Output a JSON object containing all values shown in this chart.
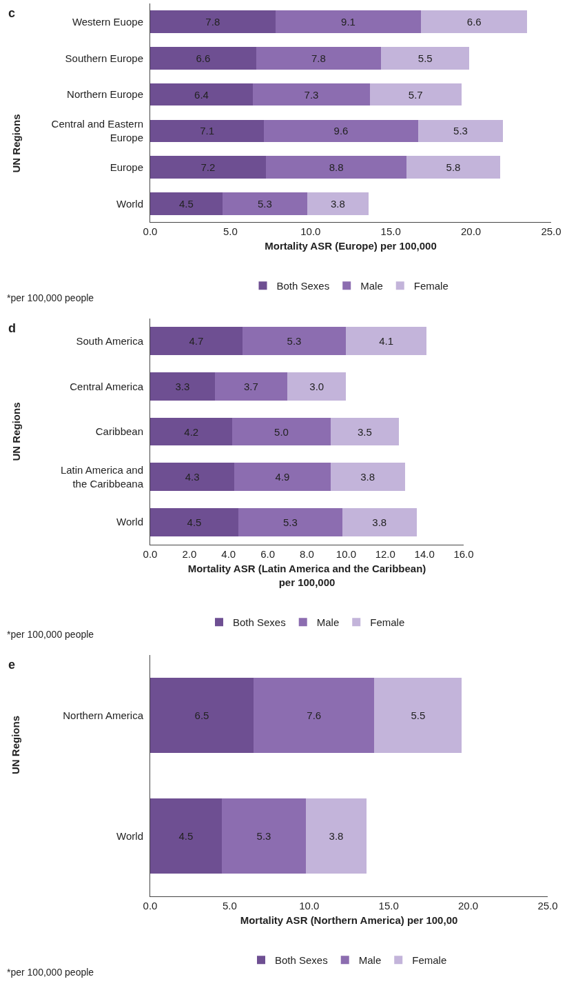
{
  "chart_data": [
    {
      "type": "bar",
      "orientation": "horizontal",
      "stacked": true,
      "legend": "bottom",
      "ylabel": "UN Regions",
      "xlabel": "Mortality ASR (Europe) per 100,000",
      "categories": [
        "Western Euope",
        "Southern Europe",
        "Northern Europe",
        "Central and Eastern Europe",
        "Europe",
        "World"
      ],
      "series": [
        {
          "name": "Both Sexes",
          "color": "#6e4f92",
          "values": [
            7.8,
            6.6,
            6.4,
            7.1,
            7.2,
            4.5
          ],
          "value_labels": [
            "7.8",
            "6.6",
            "6.4",
            "7.1",
            "7.2",
            "4.5"
          ]
        },
        {
          "name": "Male",
          "color": "#8c6db0",
          "values": [
            9.1,
            7.8,
            7.3,
            9.6,
            8.8,
            5.3
          ],
          "value_labels": [
            "9.1",
            "7.8",
            "7.3",
            "9.6",
            "8.8",
            "5.3"
          ]
        },
        {
          "name": "Female",
          "color": "#c3b4da",
          "values": [
            6.6,
            5.5,
            5.7,
            5.3,
            5.8,
            3.8
          ],
          "value_labels": [
            "6.6",
            "5.5",
            "5.7",
            "5.3",
            "5.8",
            "3.8"
          ]
        }
      ],
      "xlim": [
        0,
        25
      ],
      "xticks": [
        {
          "value": 0,
          "label": "0.0"
        },
        {
          "value": 5,
          "label": "5.0"
        },
        {
          "value": 10,
          "label": "10.0"
        },
        {
          "value": 15,
          "label": "15.0"
        },
        {
          "value": 20,
          "label": "20.0"
        },
        {
          "value": 25,
          "label": "25.0"
        }
      ],
      "annotations": [
        "c",
        "*per 100,000 people"
      ]
    },
    {
      "type": "bar",
      "orientation": "horizontal",
      "stacked": true,
      "legend": "bottom",
      "ylabel": "UN Regions",
      "xlabel": "Mortality ASR (Latin America and the Caribbean) per 100,000",
      "categories": [
        "South America",
        "Central America",
        "Caribbean",
        "Latin America and the Caribbeana",
        "World"
      ],
      "series": [
        {
          "name": "Both Sexes",
          "color": "#6e4f92",
          "values": [
            4.7,
            3.3,
            4.2,
            4.3,
            4.5
          ],
          "value_labels": [
            "4.7",
            "3.3",
            "4.2",
            "4.3",
            "4.5"
          ]
        },
        {
          "name": "Male",
          "color": "#8c6db0",
          "values": [
            5.3,
            3.7,
            5.0,
            4.9,
            5.3
          ],
          "value_labels": [
            "5.3",
            "3.7",
            "5.0",
            "4.9",
            "5.3"
          ]
        },
        {
          "name": "Female",
          "color": "#c3b4da",
          "values": [
            4.1,
            3.0,
            3.5,
            3.8,
            3.8
          ],
          "value_labels": [
            "4.1",
            "3.0",
            "3.5",
            "3.8",
            "3.8"
          ]
        }
      ],
      "xlim": [
        0,
        16
      ],
      "xticks": [
        {
          "value": 0,
          "label": "0.0"
        },
        {
          "value": 2,
          "label": "2.0"
        },
        {
          "value": 4,
          "label": "4.0"
        },
        {
          "value": 6,
          "label": "6.0"
        },
        {
          "value": 8,
          "label": "8.0"
        },
        {
          "value": 10,
          "label": "10.0"
        },
        {
          "value": 12,
          "label": "12.0"
        },
        {
          "value": 14,
          "label": "14.0"
        },
        {
          "value": 16,
          "label": "16.0"
        }
      ],
      "annotations": [
        "d",
        "*per 100,000 people"
      ]
    },
    {
      "type": "bar",
      "orientation": "horizontal",
      "stacked": true,
      "legend": "bottom",
      "ylabel": "UN Regions",
      "xlabel": "Mortality ASR (Northern America) per 100,00",
      "categories": [
        "Northern America",
        "World"
      ],
      "series": [
        {
          "name": "Both Sexes",
          "color": "#6e4f92",
          "values": [
            6.5,
            4.5
          ],
          "value_labels": [
            "6.5",
            "4.5"
          ]
        },
        {
          "name": "Male",
          "color": "#8c6db0",
          "values": [
            7.6,
            5.3
          ],
          "value_labels": [
            "7.6",
            "5.3"
          ]
        },
        {
          "name": "Female",
          "color": "#c3b4da",
          "values": [
            5.5,
            3.8
          ],
          "value_labels": [
            "5.5",
            "3.8"
          ]
        }
      ],
      "xlim": [
        0,
        25
      ],
      "xticks": [
        {
          "value": 0,
          "label": "0.0"
        },
        {
          "value": 5,
          "label": "5.0"
        },
        {
          "value": 10,
          "label": "10.0"
        },
        {
          "value": 15,
          "label": "15.0"
        },
        {
          "value": 20,
          "label": "20.0"
        },
        {
          "value": 25,
          "label": "25.0"
        }
      ],
      "annotations": [
        "e",
        "*per 100,000 people"
      ]
    }
  ]
}
